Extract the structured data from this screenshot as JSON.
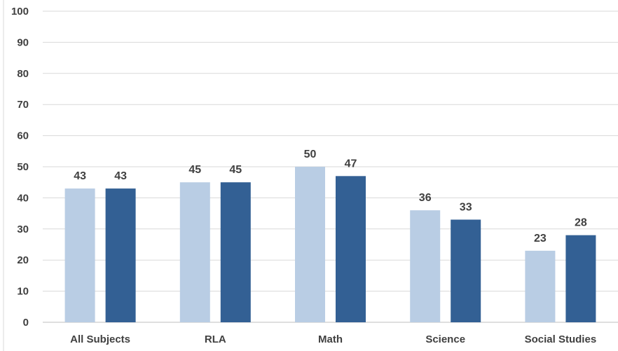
{
  "chart_data": {
    "type": "bar",
    "categories": [
      "All Subjects",
      "RLA",
      "Math",
      "Science",
      "Social Studies"
    ],
    "series": [
      {
        "color": "#b9cde4",
        "values": [
          43,
          45,
          50,
          36,
          23
        ]
      },
      {
        "color": "#336094",
        "values": [
          43,
          45,
          47,
          33,
          28
        ]
      }
    ],
    "ylim": [
      0,
      100
    ],
    "yticks": [
      0,
      10,
      20,
      30,
      40,
      50,
      60,
      70,
      80,
      90,
      100
    ],
    "grid": true,
    "data_labels": true,
    "legend": "none"
  },
  "colors": {
    "grid": "#d9d9d9",
    "text": "#404040"
  }
}
